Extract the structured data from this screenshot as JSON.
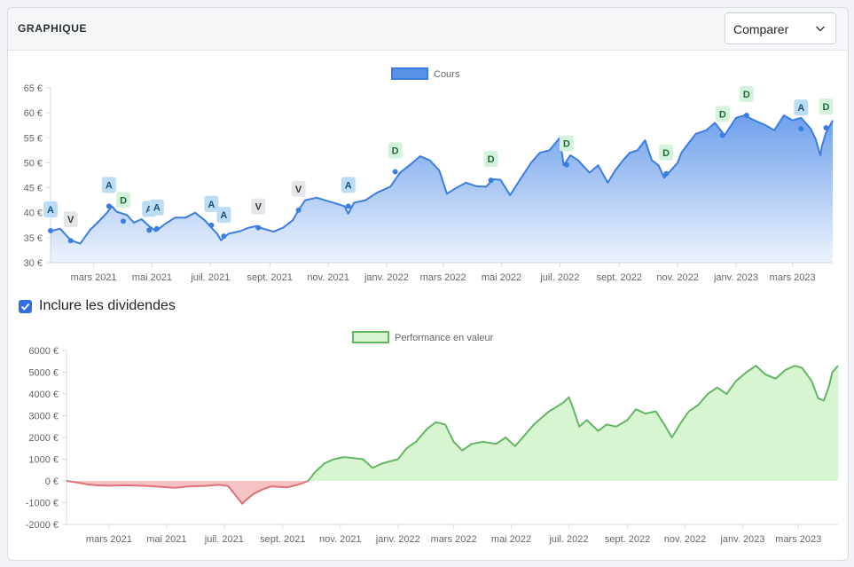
{
  "header": {
    "title": "GRAPHIQUE",
    "compare_label": "Comparer"
  },
  "dividends": {
    "label": "Inclure les dividendes",
    "checked": true
  },
  "colors": {
    "price_line": "#3b7de0",
    "price_fill": "#6ea0ec",
    "positive_line": "#64b564",
    "positive_fill": "#d7f5d0",
    "negative_line": "#e0707a",
    "negative_fill": "#f5c3c3",
    "marker_A": "#bcdcf4",
    "marker_V": "#e4e6ea",
    "marker_D": "#d5f3dc"
  },
  "chart_data": [
    {
      "type": "area",
      "legend": [
        "Cours"
      ],
      "legend_position": "top-center",
      "grid": false,
      "ylim": [
        30,
        65
      ],
      "yticks": [
        30,
        35,
        40,
        45,
        50,
        55,
        60,
        65
      ],
      "ytick_labels": [
        "30 €",
        "35 €",
        "40 €",
        "45 €",
        "50 €",
        "55 €",
        "60 €",
        "65 €"
      ],
      "xlim": [
        "2021-01-15",
        "2023-04-12"
      ],
      "xticks": [
        "mars 2021",
        "mai 2021",
        "juil. 2021",
        "sept. 2021",
        "nov. 2021",
        "janv. 2022",
        "mars 2022",
        "mai 2022",
        "juil. 2022",
        "sept. 2022",
        "nov. 2022",
        "janv. 2023",
        "mars 2023"
      ],
      "series": [
        {
          "name": "Cours",
          "points": [
            [
              "2021-01-15",
              36.3
            ],
            [
              "2021-01-25",
              36.8
            ],
            [
              "2021-02-05",
              34.5
            ],
            [
              "2021-02-15",
              33.8
            ],
            [
              "2021-02-25",
              36.5
            ],
            [
              "2021-03-05",
              38
            ],
            [
              "2021-03-15",
              40
            ],
            [
              "2021-03-20",
              41.3
            ],
            [
              "2021-03-25",
              40.2
            ],
            [
              "2021-04-05",
              39.5
            ],
            [
              "2021-04-12",
              38
            ],
            [
              "2021-04-20",
              38.7
            ],
            [
              "2021-04-28",
              37.3
            ],
            [
              "2021-05-05",
              36.3
            ],
            [
              "2021-05-15",
              37.8
            ],
            [
              "2021-05-25",
              39
            ],
            [
              "2021-06-05",
              39
            ],
            [
              "2021-06-15",
              40
            ],
            [
              "2021-06-25",
              38.5
            ],
            [
              "2021-07-02",
              37
            ],
            [
              "2021-07-08",
              35.8
            ],
            [
              "2021-07-12",
              34.5
            ],
            [
              "2021-07-20",
              35.8
            ],
            [
              "2021-08-01",
              36.3
            ],
            [
              "2021-08-10",
              37
            ],
            [
              "2021-08-18",
              37.3
            ],
            [
              "2021-08-25",
              36.8
            ],
            [
              "2021-09-05",
              36.2
            ],
            [
              "2021-09-15",
              37
            ],
            [
              "2021-09-25",
              38.5
            ],
            [
              "2021-10-01",
              40.5
            ],
            [
              "2021-10-08",
              42.5
            ],
            [
              "2021-10-20",
              43
            ],
            [
              "2021-11-01",
              42.3
            ],
            [
              "2021-11-10",
              41.8
            ],
            [
              "2021-11-18",
              41.3
            ],
            [
              "2021-11-22",
              39.8
            ],
            [
              "2021-11-28",
              42
            ],
            [
              "2021-12-10",
              42.5
            ],
            [
              "2021-12-22",
              44
            ],
            [
              "2022-01-05",
              45.2
            ],
            [
              "2022-01-15",
              48
            ],
            [
              "2022-01-25",
              49.5
            ],
            [
              "2022-02-05",
              51.3
            ],
            [
              "2022-02-15",
              50.5
            ],
            [
              "2022-02-25",
              48.5
            ],
            [
              "2022-03-05",
              43.8
            ],
            [
              "2022-03-15",
              45
            ],
            [
              "2022-03-25",
              46
            ],
            [
              "2022-04-05",
              45.3
            ],
            [
              "2022-04-15",
              45.2
            ],
            [
              "2022-04-22",
              46.7
            ],
            [
              "2022-04-30",
              46.6
            ],
            [
              "2022-05-10",
              43.5
            ],
            [
              "2022-05-20",
              46.5
            ],
            [
              "2022-06-01",
              50
            ],
            [
              "2022-06-10",
              52
            ],
            [
              "2022-06-20",
              52.5
            ],
            [
              "2022-07-01",
              55
            ],
            [
              "2022-07-05",
              49.5
            ],
            [
              "2022-07-12",
              51.5
            ],
            [
              "2022-07-20",
              50.5
            ],
            [
              "2022-08-01",
              48
            ],
            [
              "2022-08-10",
              49.5
            ],
            [
              "2022-08-20",
              46
            ],
            [
              "2022-08-28",
              48.5
            ],
            [
              "2022-09-05",
              50.5
            ],
            [
              "2022-09-12",
              52
            ],
            [
              "2022-09-20",
              52.5
            ],
            [
              "2022-09-28",
              54.5
            ],
            [
              "2022-10-05",
              50.5
            ],
            [
              "2022-10-12",
              49.5
            ],
            [
              "2022-10-18",
              47
            ],
            [
              "2022-10-25",
              48.5
            ],
            [
              "2022-11-01",
              50
            ],
            [
              "2022-11-05",
              52
            ],
            [
              "2022-11-10",
              53.3
            ],
            [
              "2022-11-20",
              55.8
            ],
            [
              "2022-12-01",
              56.5
            ],
            [
              "2022-12-10",
              58
            ],
            [
              "2022-12-20",
              55.5
            ],
            [
              "2023-01-01",
              59
            ],
            [
              "2023-01-10",
              59.5
            ],
            [
              "2023-01-20",
              58.5
            ],
            [
              "2023-02-01",
              57.5
            ],
            [
              "2023-02-10",
              56.5
            ],
            [
              "2023-02-20",
              59.5
            ],
            [
              "2023-03-01",
              58.5
            ],
            [
              "2023-03-10",
              59
            ],
            [
              "2023-03-20",
              56.8
            ],
            [
              "2023-03-25",
              54.8
            ],
            [
              "2023-03-30",
              51.5
            ],
            [
              "2023-04-01",
              53.5
            ],
            [
              "2023-04-05",
              56
            ],
            [
              "2023-04-12",
              58.5
            ]
          ]
        }
      ],
      "markers": [
        {
          "label": "A",
          "date": "2021-01-15",
          "value": 36.4
        },
        {
          "label": "V",
          "date": "2021-02-05",
          "value": 34.4
        },
        {
          "label": "A",
          "date": "2021-03-17",
          "value": 41.3
        },
        {
          "label": "D",
          "date": "2021-04-01",
          "value": 38.3
        },
        {
          "label": "A",
          "date": "2021-04-28",
          "value": 36.5
        },
        {
          "label": "A",
          "date": "2021-05-06",
          "value": 36.8
        },
        {
          "label": "A",
          "date": "2021-07-02",
          "value": 37.5
        },
        {
          "label": "A",
          "date": "2021-07-15",
          "value": 35.3
        },
        {
          "label": "V",
          "date": "2021-08-20",
          "value": 37
        },
        {
          "label": "V",
          "date": "2021-10-01",
          "value": 40.5
        },
        {
          "label": "A",
          "date": "2021-11-22",
          "value": 41.3
        },
        {
          "label": "D",
          "date": "2022-01-10",
          "value": 48.2
        },
        {
          "label": "D",
          "date": "2022-04-20",
          "value": 46.5
        },
        {
          "label": "D",
          "date": "2022-07-08",
          "value": 49.6
        },
        {
          "label": "D",
          "date": "2022-10-20",
          "value": 47.8
        },
        {
          "label": "D",
          "date": "2022-12-18",
          "value": 55.5
        },
        {
          "label": "D",
          "date": "2023-01-12",
          "value": 59.5
        },
        {
          "label": "A",
          "date": "2023-03-10",
          "value": 56.8
        },
        {
          "label": "D",
          "date": "2023-04-05",
          "value": 57
        }
      ]
    },
    {
      "type": "area",
      "legend": [
        "Performance en valeur"
      ],
      "legend_position": "top-center",
      "grid": false,
      "ylim": [
        -2000,
        6000
      ],
      "yticks": [
        -2000,
        -1000,
        0,
        1000,
        2000,
        3000,
        4000,
        5000,
        6000
      ],
      "ytick_labels": [
        "-2000 €",
        "-1000 €",
        "0 €",
        "1000 €",
        "2000 €",
        "3000 €",
        "4000 €",
        "5000 €",
        "6000 €"
      ],
      "xlim": [
        "2021-01-15",
        "2023-04-12"
      ],
      "xticks": [
        "mars 2021",
        "mai 2021",
        "juil. 2021",
        "sept. 2021",
        "nov. 2021",
        "janv. 2022",
        "mars 2022",
        "mai 2022",
        "juil. 2022",
        "sept. 2022",
        "nov. 2022",
        "janv. 2023",
        "mars 2023"
      ],
      "series": [
        {
          "name": "Performance en valeur",
          "points": [
            [
              "2021-01-15",
              0
            ],
            [
              "2021-01-25",
              -60
            ],
            [
              "2021-02-05",
              -150
            ],
            [
              "2021-02-15",
              -200
            ],
            [
              "2021-03-01",
              -220
            ],
            [
              "2021-03-20",
              -200
            ],
            [
              "2021-04-10",
              -230
            ],
            [
              "2021-04-28",
              -280
            ],
            [
              "2021-05-10",
              -320
            ],
            [
              "2021-05-25",
              -250
            ],
            [
              "2021-06-10",
              -230
            ],
            [
              "2021-06-25",
              -180
            ],
            [
              "2021-07-05",
              -230
            ],
            [
              "2021-07-12",
              -600
            ],
            [
              "2021-07-20",
              -1050
            ],
            [
              "2021-07-25",
              -850
            ],
            [
              "2021-08-01",
              -600
            ],
            [
              "2021-08-10",
              -400
            ],
            [
              "2021-08-20",
              -250
            ],
            [
              "2021-09-05",
              -300
            ],
            [
              "2021-09-15",
              -200
            ],
            [
              "2021-09-22",
              -100
            ],
            [
              "2021-09-28",
              0
            ],
            [
              "2021-10-05",
              400
            ],
            [
              "2021-10-15",
              800
            ],
            [
              "2021-10-25",
              1000
            ],
            [
              "2021-11-05",
              1100
            ],
            [
              "2021-11-15",
              1050
            ],
            [
              "2021-11-25",
              1000
            ],
            [
              "2021-12-05",
              600
            ],
            [
              "2021-12-15",
              800
            ],
            [
              "2022-01-01",
              1000
            ],
            [
              "2022-01-10",
              1500
            ],
            [
              "2022-01-20",
              1800
            ],
            [
              "2022-02-01",
              2400
            ],
            [
              "2022-02-10",
              2700
            ],
            [
              "2022-02-20",
              2600
            ],
            [
              "2022-03-01",
              1800
            ],
            [
              "2022-03-10",
              1400
            ],
            [
              "2022-03-20",
              1700
            ],
            [
              "2022-04-01",
              1800
            ],
            [
              "2022-04-15",
              1700
            ],
            [
              "2022-04-25",
              2000
            ],
            [
              "2022-05-05",
              1600
            ],
            [
              "2022-05-15",
              2100
            ],
            [
              "2022-05-25",
              2600
            ],
            [
              "2022-06-10",
              3200
            ],
            [
              "2022-06-25",
              3600
            ],
            [
              "2022-07-01",
              3850
            ],
            [
              "2022-07-05",
              3400
            ],
            [
              "2022-07-12",
              2500
            ],
            [
              "2022-07-20",
              2800
            ],
            [
              "2022-08-01",
              2300
            ],
            [
              "2022-08-10",
              2600
            ],
            [
              "2022-08-20",
              2500
            ],
            [
              "2022-09-01",
              2800
            ],
            [
              "2022-09-10",
              3300
            ],
            [
              "2022-09-20",
              3100
            ],
            [
              "2022-10-01",
              3200
            ],
            [
              "2022-10-10",
              2600
            ],
            [
              "2022-10-18",
              2000
            ],
            [
              "2022-10-28",
              2700
            ],
            [
              "2022-11-05",
              3200
            ],
            [
              "2022-11-15",
              3500
            ],
            [
              "2022-11-25",
              4000
            ],
            [
              "2022-12-05",
              4300
            ],
            [
              "2022-12-15",
              4000
            ],
            [
              "2022-12-25",
              4600
            ],
            [
              "2023-01-05",
              5000
            ],
            [
              "2023-01-15",
              5300
            ],
            [
              "2023-01-25",
              4900
            ],
            [
              "2023-02-05",
              4700
            ],
            [
              "2023-02-15",
              5100
            ],
            [
              "2023-02-25",
              5300
            ],
            [
              "2023-03-05",
              5200
            ],
            [
              "2023-03-15",
              4600
            ],
            [
              "2023-03-22",
              3800
            ],
            [
              "2023-03-28",
              3700
            ],
            [
              "2023-04-02",
              4300
            ],
            [
              "2023-04-06",
              5000
            ],
            [
              "2023-04-12",
              5300
            ]
          ]
        }
      ]
    }
  ]
}
